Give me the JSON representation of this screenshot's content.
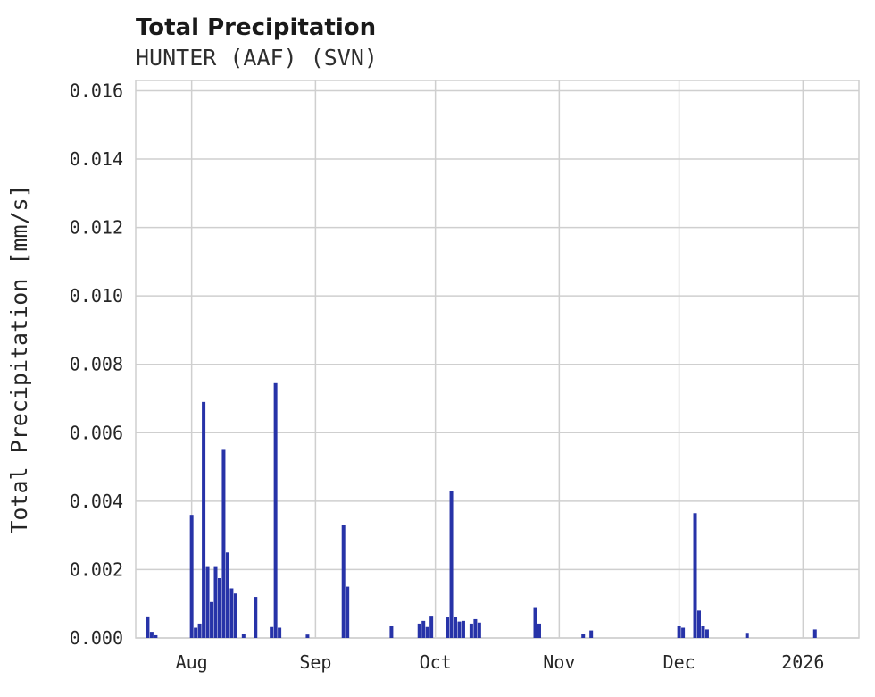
{
  "chart_data": {
    "type": "bar",
    "title": "Total Precipitation",
    "subtitle": "HUNTER (AAF) (SVN)",
    "xlabel": "",
    "ylabel": "Total Precipitation [mm/s]",
    "ylim": [
      0,
      0.0163
    ],
    "grid": true,
    "legend": "none",
    "bar_color": "#2733a8",
    "grid_color": "#cfcfcf",
    "x_domain": [
      "2025-07-18",
      "2026-01-15"
    ],
    "xticks": [
      {
        "date": "2025-08-01",
        "label": "Aug"
      },
      {
        "date": "2025-09-01",
        "label": "Sep"
      },
      {
        "date": "2025-10-01",
        "label": "Oct"
      },
      {
        "date": "2025-11-01",
        "label": "Nov"
      },
      {
        "date": "2025-12-01",
        "label": "Dec"
      },
      {
        "date": "2026-01-01",
        "label": "2026"
      }
    ],
    "yticks": [
      {
        "value": 0.0,
        "label": "0.000"
      },
      {
        "value": 0.002,
        "label": "0.002"
      },
      {
        "value": 0.004,
        "label": "0.004"
      },
      {
        "value": 0.006,
        "label": "0.006"
      },
      {
        "value": 0.008,
        "label": "0.008"
      },
      {
        "value": 0.01,
        "label": "0.010"
      },
      {
        "value": 0.012,
        "label": "0.012"
      },
      {
        "value": 0.014,
        "label": "0.014"
      },
      {
        "value": 0.016,
        "label": "0.016"
      }
    ],
    "series": [
      {
        "name": "Total Precipitation [mm/s]",
        "points": [
          {
            "date": "2025-07-21",
            "value": 0.00063
          },
          {
            "date": "2025-07-22",
            "value": 0.00018
          },
          {
            "date": "2025-07-23",
            "value": 8e-05
          },
          {
            "date": "2025-08-01",
            "value": 0.0036
          },
          {
            "date": "2025-08-02",
            "value": 0.0003
          },
          {
            "date": "2025-08-03",
            "value": 0.00042
          },
          {
            "date": "2025-08-04",
            "value": 0.0069
          },
          {
            "date": "2025-08-05",
            "value": 0.0021
          },
          {
            "date": "2025-08-06",
            "value": 0.00105
          },
          {
            "date": "2025-08-07",
            "value": 0.0021
          },
          {
            "date": "2025-08-08",
            "value": 0.00175
          },
          {
            "date": "2025-08-09",
            "value": 0.0055
          },
          {
            "date": "2025-08-10",
            "value": 0.0025
          },
          {
            "date": "2025-08-11",
            "value": 0.00145
          },
          {
            "date": "2025-08-12",
            "value": 0.0013
          },
          {
            "date": "2025-08-14",
            "value": 0.00012
          },
          {
            "date": "2025-08-17",
            "value": 0.0012
          },
          {
            "date": "2025-08-21",
            "value": 0.00032
          },
          {
            "date": "2025-08-22",
            "value": 0.00745
          },
          {
            "date": "2025-08-23",
            "value": 0.0003
          },
          {
            "date": "2025-08-30",
            "value": 0.0001
          },
          {
            "date": "2025-09-08",
            "value": 0.0033
          },
          {
            "date": "2025-09-09",
            "value": 0.0015
          },
          {
            "date": "2025-09-20",
            "value": 0.00035
          },
          {
            "date": "2025-09-27",
            "value": 0.00042
          },
          {
            "date": "2025-09-28",
            "value": 0.0005
          },
          {
            "date": "2025-09-29",
            "value": 0.00032
          },
          {
            "date": "2025-09-30",
            "value": 0.00065
          },
          {
            "date": "2025-10-04",
            "value": 0.0006
          },
          {
            "date": "2025-10-05",
            "value": 0.0043
          },
          {
            "date": "2025-10-06",
            "value": 0.00062
          },
          {
            "date": "2025-10-07",
            "value": 0.00048
          },
          {
            "date": "2025-10-08",
            "value": 0.0005
          },
          {
            "date": "2025-10-10",
            "value": 0.00042
          },
          {
            "date": "2025-10-11",
            "value": 0.00055
          },
          {
            "date": "2025-10-12",
            "value": 0.00045
          },
          {
            "date": "2025-10-26",
            "value": 0.0009
          },
          {
            "date": "2025-10-27",
            "value": 0.00042
          },
          {
            "date": "2025-11-07",
            "value": 0.00012
          },
          {
            "date": "2025-11-09",
            "value": 0.00022
          },
          {
            "date": "2025-12-01",
            "value": 0.00035
          },
          {
            "date": "2025-12-02",
            "value": 0.0003
          },
          {
            "date": "2025-12-05",
            "value": 0.00365
          },
          {
            "date": "2025-12-06",
            "value": 0.0008
          },
          {
            "date": "2025-12-07",
            "value": 0.00035
          },
          {
            "date": "2025-12-08",
            "value": 0.00025
          },
          {
            "date": "2025-12-18",
            "value": 0.00015
          },
          {
            "date": "2026-01-04",
            "value": 0.00025
          }
        ]
      }
    ]
  }
}
